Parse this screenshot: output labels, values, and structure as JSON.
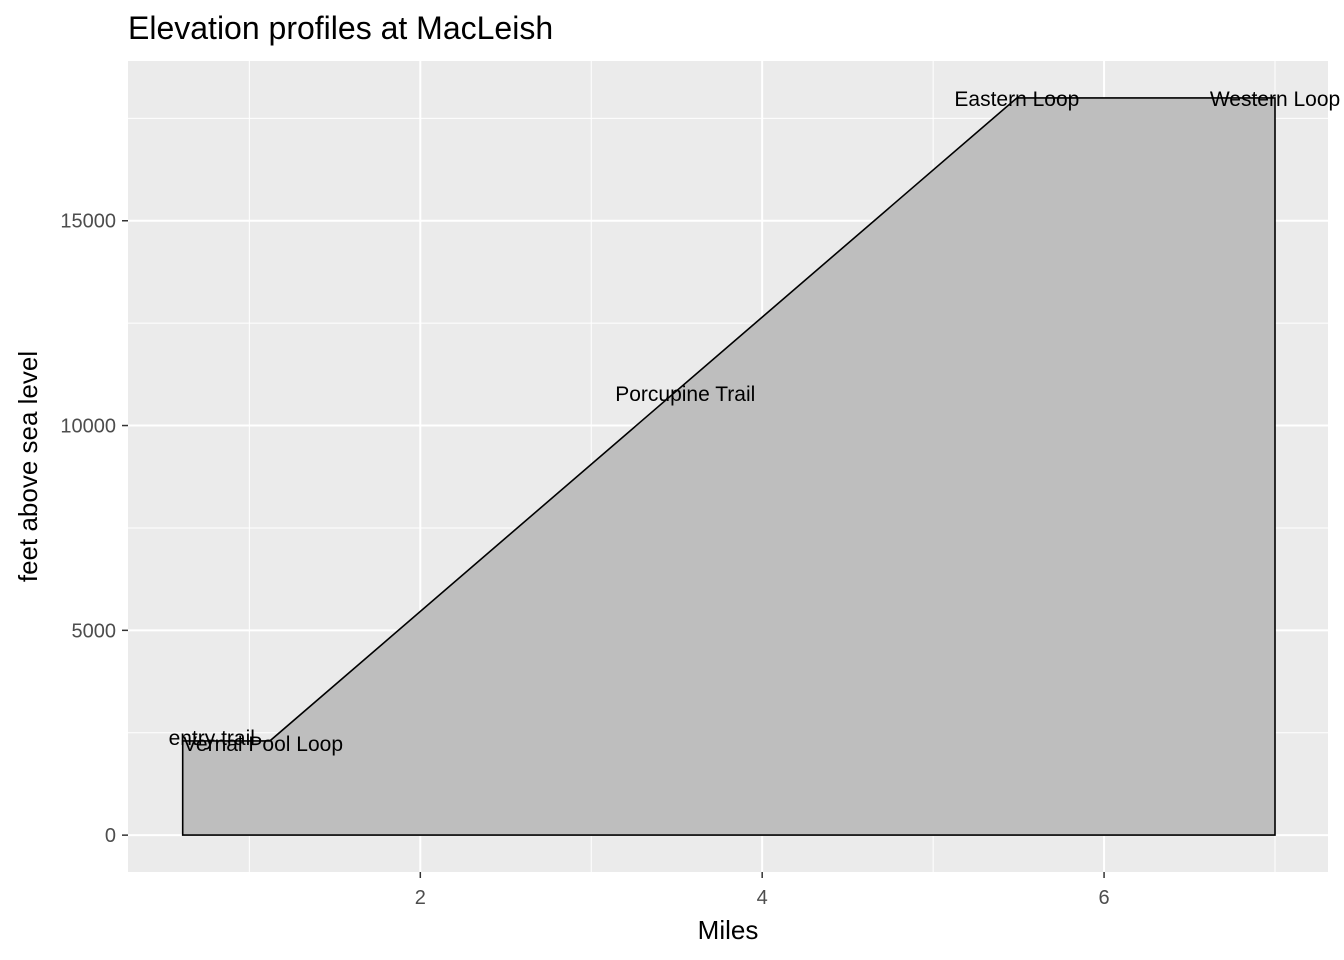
{
  "chart_data": {
    "type": "area",
    "title": "Elevation profiles at MacLeish",
    "xlabel": "Miles",
    "ylabel": "feet above sea level",
    "xlim": [
      0.29,
      7.31
    ],
    "ylim": [
      -900,
      18900
    ],
    "x_ticks": [
      2,
      4,
      6
    ],
    "x_tick_labels": [
      "2",
      "4",
      "6"
    ],
    "y_ticks": [
      0,
      5000,
      10000,
      15000
    ],
    "y_tick_labels": [
      "0",
      "5000",
      "10000",
      "15000"
    ],
    "grid": true,
    "fill_color": "#bebebe",
    "outline_color": "#000000",
    "panel_background": "#ebebeb",
    "points": [
      {
        "x": 0.61,
        "y": 0
      },
      {
        "x": 0.61,
        "y": 2300
      },
      {
        "x": 1.12,
        "y": 2300
      },
      {
        "x": 5.49,
        "y": 18000
      },
      {
        "x": 7.0,
        "y": 18000
      },
      {
        "x": 7.0,
        "y": 0
      }
    ],
    "annotations": [
      {
        "label": "entry trail",
        "x": 0.78,
        "y": 2400
      },
      {
        "label": "Vernal Pool Loop",
        "x": 1.08,
        "y": 2250
      },
      {
        "label": "Porcupine Trail",
        "x": 3.55,
        "y": 10800
      },
      {
        "label": "Eastern Loop",
        "x": 5.49,
        "y": 18000
      },
      {
        "label": "Western Loop",
        "x": 7.0,
        "y": 18000
      }
    ]
  }
}
